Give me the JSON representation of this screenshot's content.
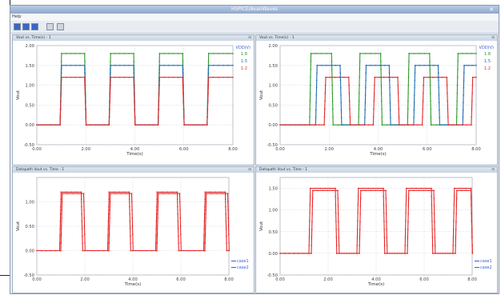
{
  "window": {
    "title": "HSPICE/AvanWaves",
    "menu": "Help"
  },
  "toolbar": {
    "icons": [
      "play-icon",
      "window-icon",
      "window-icon",
      "copy-icon",
      "export-icon"
    ]
  },
  "colors": {
    "green": "#2e9a2a",
    "blue": "#1f6fb4",
    "red": "#e52a2a",
    "legend_blue": "#3b5bd6"
  },
  "chart_data": [
    {
      "type": "line",
      "panel_title": "Vout vs. Time(s) - 1",
      "xlabel": "Time(s)",
      "ylabel": "Vout",
      "xlim": [
        0,
        8
      ],
      "ylim": [
        -0.5,
        2.0
      ],
      "xticks": [
        "0.00",
        "2.00",
        "4.00",
        "6.00",
        "8.00"
      ],
      "yticks": [
        "-0.50",
        "0.00",
        "0.50",
        "1.00",
        "1.50",
        "2.00"
      ],
      "legend_title": "VDD(V)",
      "legend_position": "top-right",
      "series": [
        {
          "name": "1.8",
          "color": "#2e9a2a",
          "high": 1.8,
          "edges": [
            [
              0.95,
              1.95
            ],
            [
              2.95,
              3.95
            ],
            [
              4.95,
              5.95
            ],
            [
              6.95
            ]
          ]
        },
        {
          "name": "1.5",
          "color": "#1f6fb4",
          "high": 1.5,
          "edges": [
            [
              0.95,
              1.95
            ],
            [
              2.95,
              3.95
            ],
            [
              4.95,
              5.95
            ],
            [
              6.95
            ]
          ]
        },
        {
          "name": "1.2",
          "color": "#e52a2a",
          "high": 1.2,
          "edges": [
            [
              0.95,
              1.95
            ],
            [
              2.95,
              3.95
            ],
            [
              4.95,
              5.95
            ],
            [
              6.95
            ]
          ]
        }
      ]
    },
    {
      "type": "line",
      "panel_title": "Vout vs. Time(s) - 1",
      "xlabel": "Time(s)",
      "ylabel": "Vout",
      "xlim": [
        0,
        8
      ],
      "ylim": [
        -0.5,
        2.0
      ],
      "xticks": [
        "0.00",
        "2.00",
        "4.00",
        "6.00",
        "8.00"
      ],
      "yticks": [
        "-0.50",
        "0.00",
        "0.50",
        "1.00",
        "1.50",
        "2.00"
      ],
      "legend_title": "VDD(V)",
      "legend_position": "top-right",
      "series": [
        {
          "name": "1.8",
          "color": "#2e9a2a",
          "high": 1.8,
          "edges": [
            [
              1.2,
              2.1
            ],
            [
              3.2,
              4.1
            ],
            [
              5.2,
              6.1
            ],
            [
              7.2
            ]
          ]
        },
        {
          "name": "1.5",
          "color": "#1f6fb4",
          "high": 1.5,
          "edges": [
            [
              1.45,
              2.45
            ],
            [
              3.45,
              4.45
            ],
            [
              5.45,
              6.45
            ],
            [
              7.45
            ]
          ]
        },
        {
          "name": "1.2",
          "color": "#e52a2a",
          "high": 1.2,
          "edges": [
            [
              1.8,
              2.8
            ],
            [
              3.8,
              4.8
            ],
            [
              5.8,
              6.8
            ],
            [
              7.8
            ]
          ]
        }
      ]
    },
    {
      "type": "line",
      "panel_title": "Datapath Vout vs. Time - 1",
      "xlabel": "Time(s)",
      "ylabel": "Vout",
      "xlim": [
        0,
        8
      ],
      "ylim": [
        -0.5,
        1.5
      ],
      "xticks": [
        "0.00",
        "2.00",
        "4.00",
        "6.00",
        "8.00"
      ],
      "yticks": [
        "-0.50",
        "0.00",
        "0.50",
        "1.00"
      ],
      "legend_position": "bottom-right",
      "series": [
        {
          "name": "case1",
          "color": "#e52a2a",
          "high": 1.2,
          "edges": [
            [
              0.95,
              1.85
            ],
            [
              2.95,
              3.85
            ],
            [
              4.95,
              5.85
            ],
            [
              6.95,
              7.85
            ]
          ]
        },
        {
          "name": "case2",
          "color": "#e52a2a",
          "high": 1.17,
          "edges": [
            [
              1.0,
              1.95
            ],
            [
              3.0,
              3.95
            ],
            [
              5.0,
              5.95
            ],
            [
              7.0,
              7.95
            ]
          ]
        }
      ]
    },
    {
      "type": "line",
      "panel_title": "Datapath Vout vs. Time - 1",
      "xlabel": "Time(s)",
      "ylabel": "Vout",
      "xlim": [
        0,
        8
      ],
      "ylim": [
        -0.5,
        1.75
      ],
      "xticks": [
        "0.00",
        "2.00",
        "4.00",
        "6.00",
        "8.00"
      ],
      "yticks": [
        "-0.50",
        "0.00",
        "0.50",
        "1.00",
        "1.50"
      ],
      "legend_position": "bottom-right",
      "series": [
        {
          "name": "case1",
          "color": "#e52a2a",
          "high": 1.5,
          "edges": [
            [
              1.2,
              2.3
            ],
            [
              3.2,
              4.3
            ],
            [
              5.2,
              6.3
            ],
            [
              7.2,
              7.95
            ]
          ]
        },
        {
          "name": "case2",
          "color": "#e52a2a",
          "high": 1.45,
          "edges": [
            [
              1.3,
              2.4
            ],
            [
              3.3,
              4.4
            ],
            [
              5.3,
              6.4
            ],
            [
              7.3,
              7.95
            ]
          ]
        }
      ]
    }
  ]
}
